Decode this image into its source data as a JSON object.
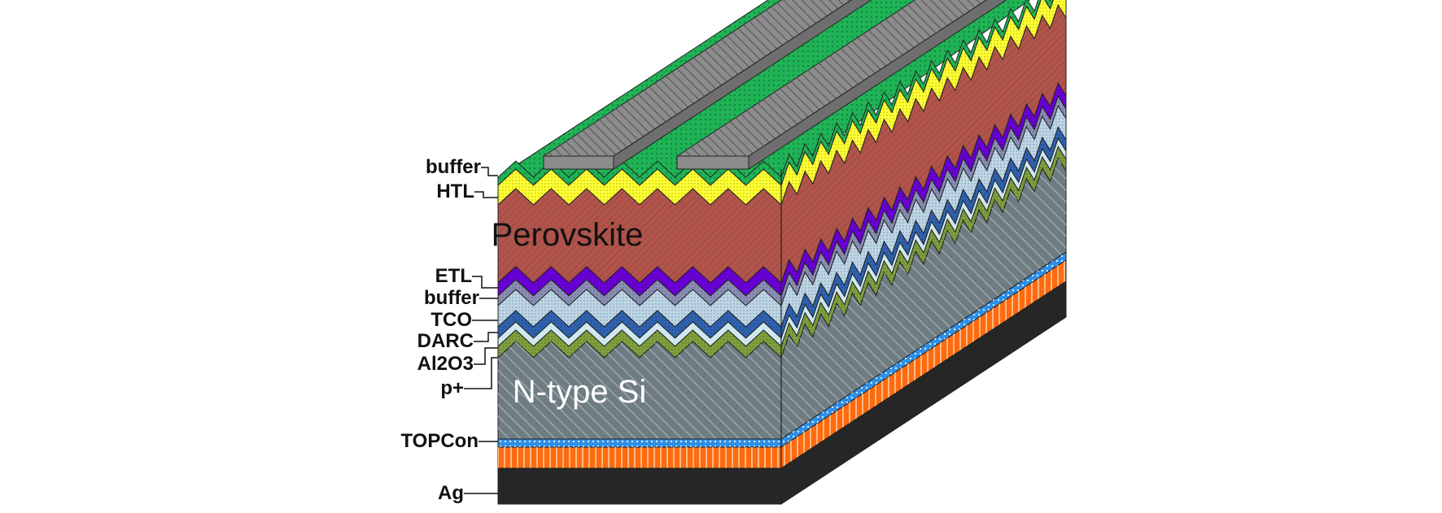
{
  "diagram": {
    "labels": {
      "buffer_top": "buffer",
      "htl": "HTL",
      "etl": "ETL",
      "buffer_mid": "buffer",
      "tco": "TCO",
      "darc": "DARC",
      "al2o3": "Al2O3",
      "p_plus": "p+",
      "topcon": "TOPCon",
      "ag": "Ag"
    },
    "regions": {
      "perovskite": "Perovskite",
      "n_type_si": "N-type Si"
    },
    "colors": {
      "buffer": "#1fb356",
      "htl": "#ffff33",
      "perovskite": "#b1544b",
      "etl": "#6a00d8",
      "buffer_mid": "#8b8fb5",
      "tco": "#bcd6e6",
      "darc": "#2f62b0",
      "al2o3": "#cfe8ef",
      "p_plus": "#7fa03d",
      "n_si": "#6f7c82",
      "topcon": "#2f8fe6",
      "doped": "#ff6b10",
      "ag": "#262626",
      "contact": "#8c8c8c"
    }
  }
}
